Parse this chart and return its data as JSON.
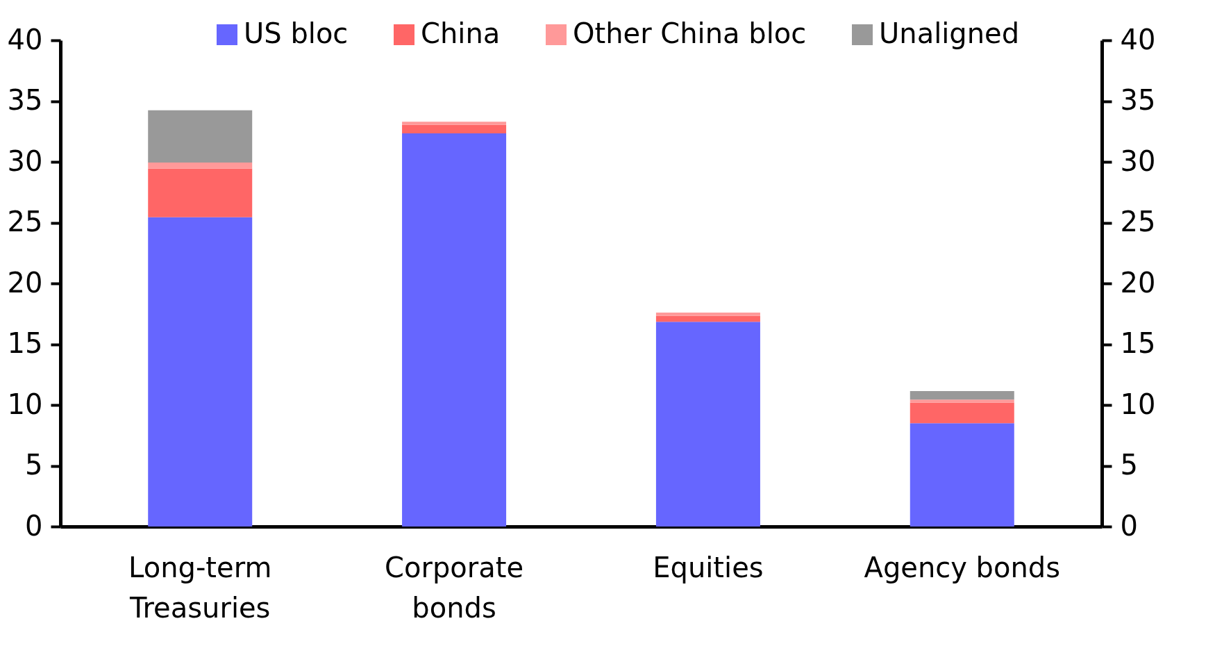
{
  "chart_data": {
    "type": "bar",
    "stacked": true,
    "categories": [
      "Long-term Treasuries",
      "Corporate bonds",
      "Equities",
      "Agency bonds"
    ],
    "series": [
      {
        "name": "US bloc",
        "color": "#6666ff",
        "values": [
          25.45,
          32.35,
          16.85,
          8.5
        ]
      },
      {
        "name": "China",
        "color": "#ff6666",
        "values": [
          4.0,
          0.7,
          0.5,
          1.7
        ]
      },
      {
        "name": "Other China bloc",
        "color": "#ff9999",
        "values": [
          0.5,
          0.25,
          0.25,
          0.25
        ]
      },
      {
        "name": "Unaligned",
        "color": "#999999",
        "values": [
          4.3,
          0,
          0,
          0.7
        ]
      }
    ],
    "ylim": [
      0,
      40
    ],
    "yticks": [
      0,
      5,
      10,
      15,
      20,
      25,
      30,
      35,
      40
    ],
    "y2lim": [
      0,
      40
    ],
    "y2ticks": [
      0,
      5,
      10,
      15,
      20,
      25,
      30,
      35,
      40
    ],
    "grid": false,
    "legend": "top"
  }
}
